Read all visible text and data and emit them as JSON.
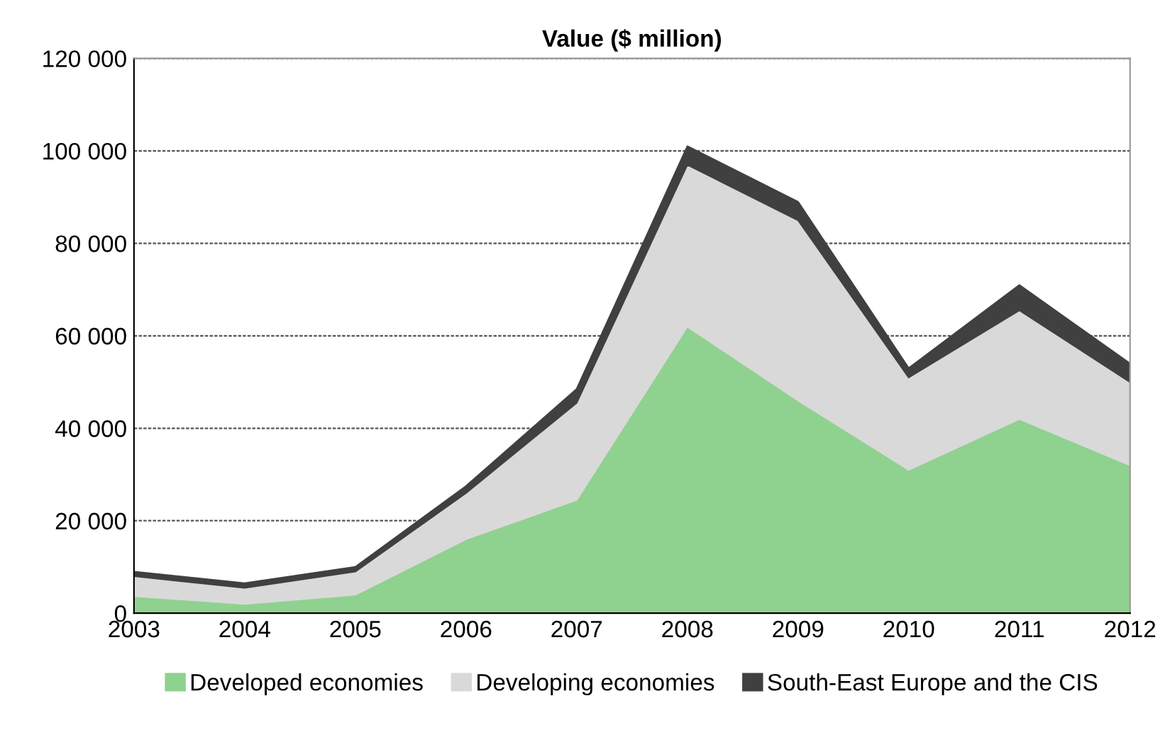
{
  "chart_data": {
    "type": "area",
    "stacked": true,
    "title": "Value ($ million)",
    "categories": [
      "2003",
      "2004",
      "2005",
      "2006",
      "2007",
      "2008",
      "2009",
      "2010",
      "2011",
      "2012"
    ],
    "series": [
      {
        "name": "Developed economies",
        "color": "#8fd18f",
        "values": [
          3700,
          2000,
          4000,
          16000,
          24500,
          62000,
          46000,
          31000,
          42000,
          32000
        ]
      },
      {
        "name": "Developing economies",
        "color": "#d9d9d9",
        "values": [
          4300,
          3500,
          5000,
          10000,
          21000,
          35000,
          39000,
          20000,
          23500,
          18000
        ]
      },
      {
        "name": "South-East Europe and the CIS",
        "color": "#404040",
        "values": [
          1000,
          1000,
          1000,
          1500,
          3000,
          4000,
          4000,
          2000,
          5500,
          4000
        ]
      }
    ],
    "ylim": [
      0,
      120000
    ],
    "yticks": [
      0,
      {
        "value": 20000,
        "label": "20 000"
      },
      {
        "value": 40000,
        "label": "40 000"
      },
      {
        "value": 60000,
        "label": "60 000"
      },
      {
        "value": 80000,
        "label": "80 000"
      },
      {
        "value": 100000,
        "label": "100 000"
      },
      {
        "value": 120000,
        "label": "120 000"
      }
    ],
    "grid": "y",
    "legend": "bottom"
  }
}
